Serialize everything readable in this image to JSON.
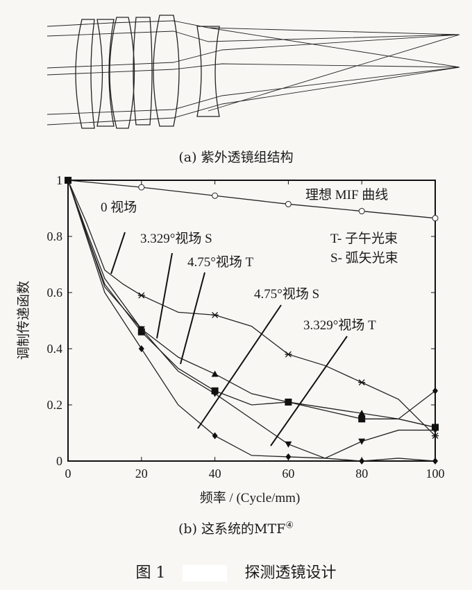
{
  "caption_a": "(a) 紫外透镜组结构",
  "caption_b": "(b) 这系统的MTF",
  "caption_b_sup": "④",
  "figure_caption_num": "图 1",
  "figure_caption_title": "探测透镜设计",
  "chart_data": {
    "type": "line",
    "xlabel": "频率 / (Cycle/mm)",
    "ylabel": "调制传递函数",
    "xlim": [
      0,
      100
    ],
    "ylim": [
      0,
      1
    ],
    "xticks": [
      "0",
      "20",
      "40",
      "60",
      "80",
      "100"
    ],
    "yticks": [
      "0",
      "0.2",
      "0.4",
      "0.6",
      "0.8",
      "1"
    ],
    "grid": false,
    "legend_text": [
      "T- 子午光束",
      "S- 弧矢光束"
    ],
    "annotations": [
      "理想 MIF 曲线",
      "0 视场",
      "3.329°视场 S",
      "4.75°视场 T",
      "4.75°视场 S",
      "3.329°视场 T"
    ],
    "series": [
      {
        "name": "理想 MIF 曲线",
        "marker": "circle",
        "x": [
          0,
          20,
          40,
          60,
          80,
          100
        ],
        "y": [
          1,
          0.975,
          0.945,
          0.915,
          0.89,
          0.865
        ]
      },
      {
        "name": "0 视场",
        "marker": "asterisk",
        "x": [
          0,
          5,
          10,
          15,
          20,
          30,
          40,
          50,
          60,
          70,
          80,
          90,
          100
        ],
        "y": [
          1,
          0.85,
          0.68,
          0.63,
          0.59,
          0.53,
          0.52,
          0.48,
          0.38,
          0.34,
          0.28,
          0.22,
          0.09
        ]
      },
      {
        "name": "3.329°视场 S",
        "marker": "triangle",
        "x": [
          0,
          5,
          10,
          20,
          30,
          40,
          50,
          60,
          70,
          80,
          90,
          100
        ],
        "y": [
          1,
          0.82,
          0.65,
          0.47,
          0.37,
          0.31,
          0.24,
          0.21,
          0.19,
          0.17,
          0.15,
          0.12
        ]
      },
      {
        "name": "4.75°视场 T",
        "marker": "square",
        "x": [
          0,
          5,
          10,
          20,
          30,
          40,
          50,
          60,
          70,
          80,
          90,
          100
        ],
        "y": [
          1,
          0.81,
          0.63,
          0.46,
          0.33,
          0.25,
          0.2,
          0.21,
          0.18,
          0.15,
          0.15,
          0.12
        ]
      },
      {
        "name": "3.329°视场 T",
        "marker": "triangle-down",
        "x": [
          0,
          5,
          10,
          20,
          30,
          40,
          50,
          60,
          70,
          80,
          90,
          100
        ],
        "y": [
          1,
          0.81,
          0.62,
          0.47,
          0.32,
          0.24,
          0.15,
          0.06,
          0.01,
          0.07,
          0.11,
          0.11
        ]
      },
      {
        "name": "4.75°视场 S",
        "marker": "diamond",
        "x": [
          0,
          5,
          10,
          20,
          30,
          40,
          50,
          60,
          70,
          80,
          90,
          100
        ],
        "y": [
          1,
          0.8,
          0.6,
          0.4,
          0.2,
          0.09,
          0.02,
          0.015,
          0.01,
          0.0,
          0.01,
          0.0
        ]
      },
      {
        "name": "",
        "marker": "diamond",
        "x": [
          80,
          90,
          100
        ],
        "y": [
          0.15,
          0.15,
          0.25
        ]
      }
    ]
  }
}
